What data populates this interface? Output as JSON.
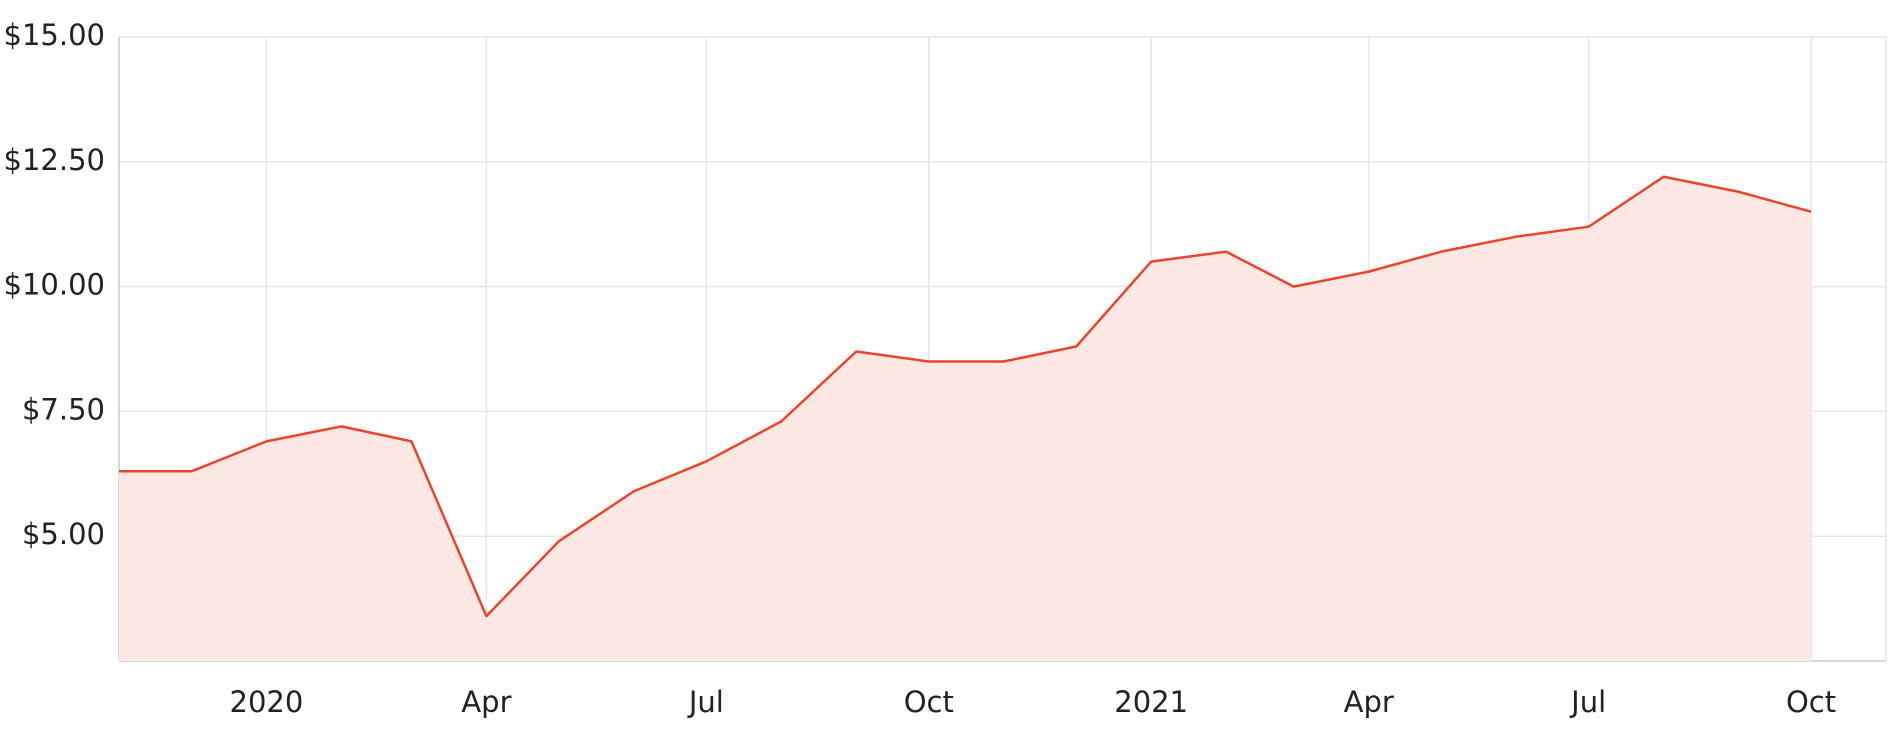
{
  "chart_data": {
    "type": "area",
    "x": [
      "2019-11",
      "2019-12",
      "2020-01",
      "2020-02",
      "2020-03",
      "2020-04",
      "2020-05",
      "2020-06",
      "2020-07",
      "2020-08",
      "2020-09",
      "2020-10",
      "2020-11",
      "2020-12",
      "2021-01",
      "2021-02",
      "2021-03",
      "2021-04",
      "2021-05",
      "2021-06",
      "2021-07",
      "2021-08",
      "2021-09",
      "2021-10"
    ],
    "series": [
      {
        "color": "#e8452c",
        "fill": "#fde8e4",
        "values": [
          6.3,
          6.3,
          6.9,
          7.2,
          6.9,
          3.4,
          4.9,
          5.9,
          6.5,
          7.3,
          8.7,
          8.5,
          8.5,
          8.8,
          10.5,
          10.7,
          10.0,
          10.3,
          10.7,
          11.0,
          11.2,
          12.2,
          11.9,
          11.5
        ]
      }
    ],
    "xlim": [
      "2019-11",
      "2021-11"
    ],
    "xticks": [
      {
        "value": "2020-01",
        "label": "2020"
      },
      {
        "value": "2020-04",
        "label": "Apr"
      },
      {
        "value": "2020-07",
        "label": "Jul"
      },
      {
        "value": "2020-10",
        "label": "Oct"
      },
      {
        "value": "2021-01",
        "label": "2021"
      },
      {
        "value": "2021-04",
        "label": "Apr"
      },
      {
        "value": "2021-07",
        "label": "Jul"
      },
      {
        "value": "2021-10",
        "label": "Oct"
      }
    ],
    "ylim": [
      2.5,
      15
    ],
    "yticks": [
      {
        "value": 5,
        "label": "$5.00"
      },
      {
        "value": 7.5,
        "label": "$7.50"
      },
      {
        "value": 10,
        "label": "$10.00"
      },
      {
        "value": 12.5,
        "label": "$12.50"
      },
      {
        "value": 15,
        "label": "$15.00"
      }
    ],
    "grid": true
  }
}
